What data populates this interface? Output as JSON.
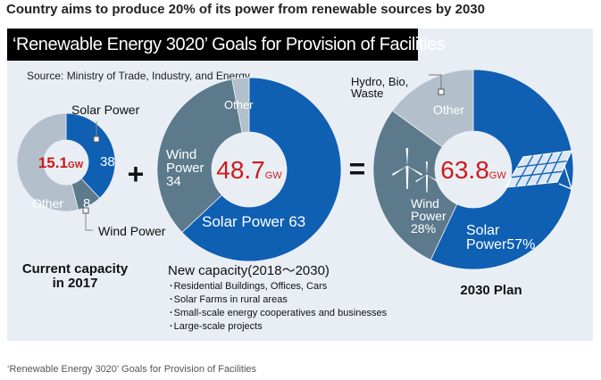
{
  "headline": "Country aims to produce 20% of its power from renewable sources by 2030",
  "banner_title": "‘Renewable Energy 3020’ Goals for Provision of Facilities",
  "source": "Source: Ministry of Trade, Industry, and Energy",
  "caption": "‘Renewable Energy 3020’ Goals for Provision of Facilities",
  "colors": {
    "solar": "#0f5fb3",
    "wind": "#5c7a8c",
    "other": "#b3c0cb",
    "center": "#e9eef5",
    "total": "#cc1b1b",
    "panel": "#e9eef5"
  },
  "operators": {
    "plus": "+",
    "equals": "="
  },
  "chart_data": [
    {
      "type": "pie",
      "title": "Current capacity in 2017",
      "total_label": "15.1",
      "unit": "GW",
      "slices": [
        {
          "name": "Solar Power",
          "label": "38",
          "value": 38,
          "color": "#0f5fb3"
        },
        {
          "name": "Wind Power",
          "label": "8",
          "value": 8,
          "color": "#5c7a8c"
        },
        {
          "name": "Other",
          "label": "Other",
          "value": 54,
          "color": "#b3c0cb"
        }
      ],
      "callouts": [
        "Solar Power",
        "Wind Power"
      ]
    },
    {
      "type": "pie",
      "title": "New capacity(2018～2030)",
      "total_label": "48.7",
      "unit": "GW",
      "slices": [
        {
          "name": "Solar Power",
          "label": "Solar Power 63",
          "value": 63,
          "color": "#0f5fb3"
        },
        {
          "name": "Wind Power",
          "label_lines": [
            "Wind",
            "Power",
            "34"
          ],
          "value": 34,
          "color": "#5c7a8c"
        },
        {
          "name": "Other",
          "label": "Other",
          "value": 3,
          "color": "#b3c0cb"
        }
      ],
      "bullets": [
        "Residential Buildings, Offices, Cars",
        "Solar Farms in rural areas",
        "Small-scale energy cooperatives and businesses",
        "Large-scale projects"
      ]
    },
    {
      "type": "pie",
      "title": "2030 Plan",
      "total_label": "63.8",
      "unit": "GW",
      "slices": [
        {
          "name": "Solar Power",
          "label_lines": [
            "Solar",
            "Power57%"
          ],
          "value": 57,
          "color": "#0f5fb3"
        },
        {
          "name": "Wind Power",
          "label_lines": [
            "Wind",
            "Power",
            "28%"
          ],
          "value": 28,
          "color": "#5c7a8c"
        },
        {
          "name": "Other",
          "label": "Other",
          "value": 15,
          "color": "#b3c0cb"
        }
      ],
      "callout_lines": [
        "Hydro, Bio,",
        "Waste"
      ]
    }
  ],
  "section_labels": {
    "current": [
      "Current capacity",
      "in 2017"
    ],
    "plan": "2030 Plan"
  }
}
